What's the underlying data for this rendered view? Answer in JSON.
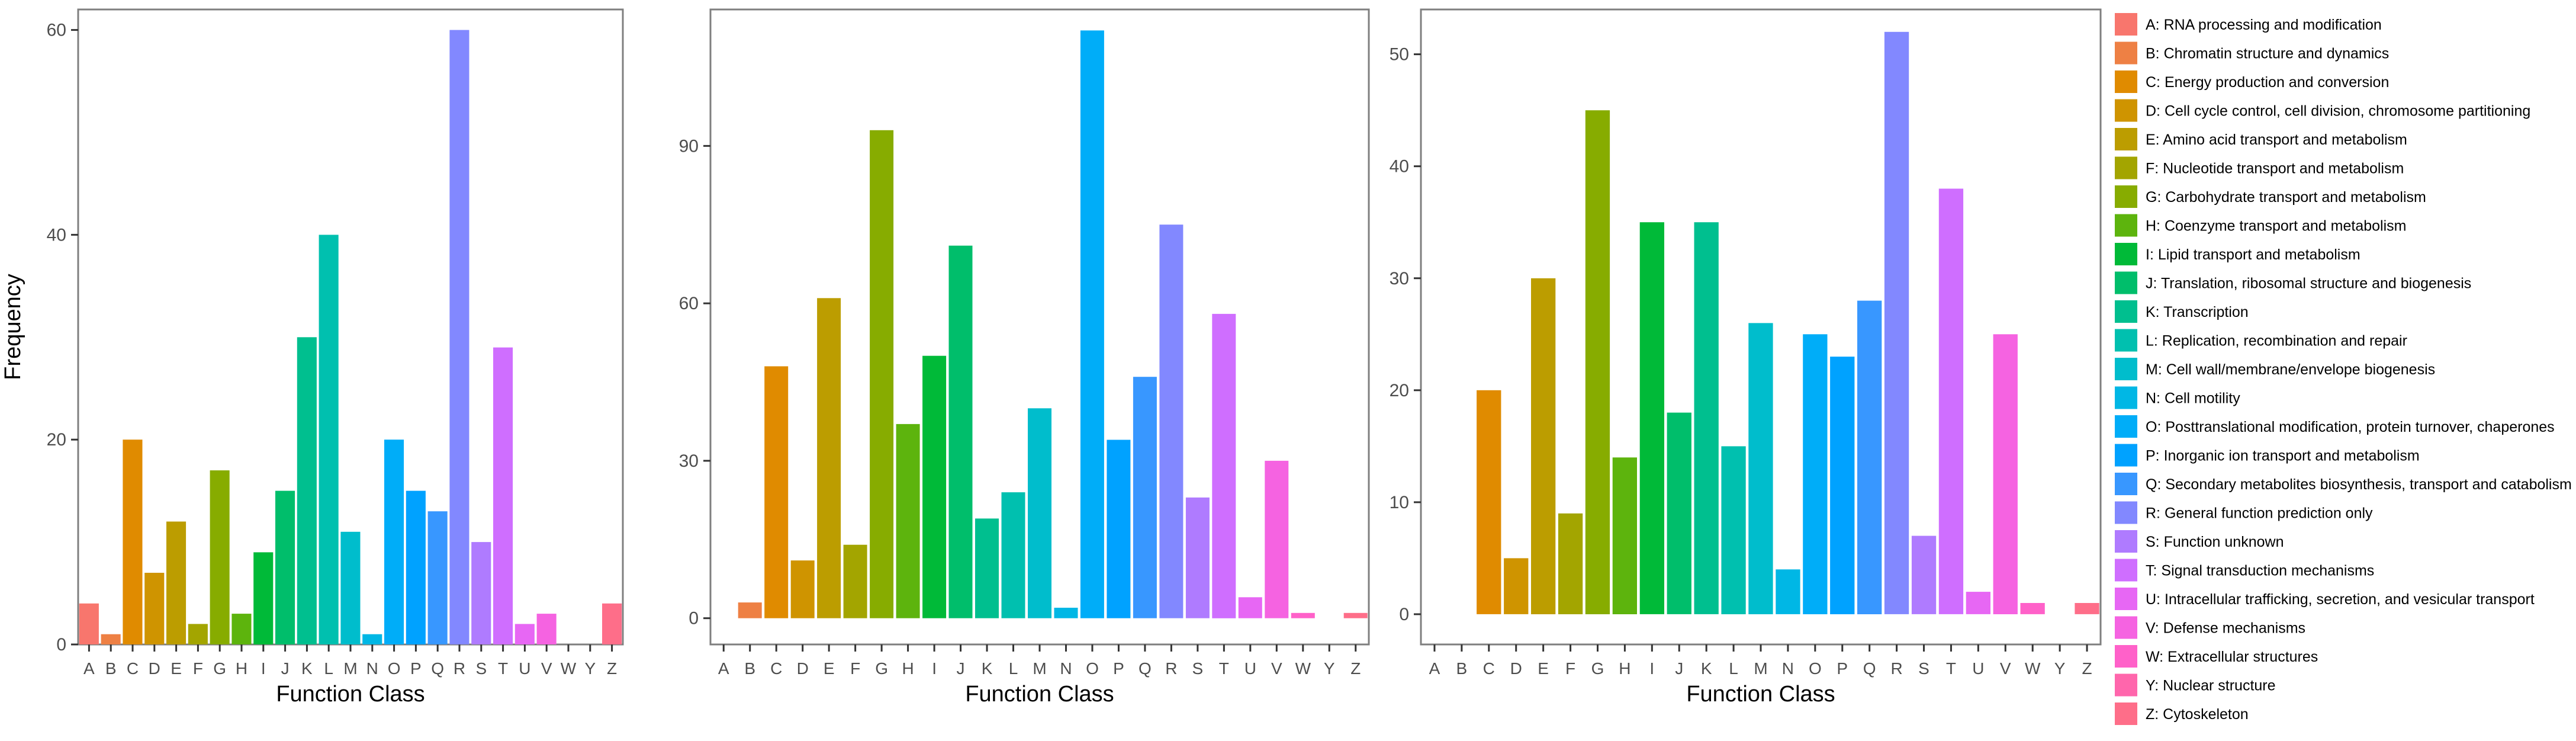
{
  "categories": [
    "A",
    "B",
    "C",
    "D",
    "E",
    "F",
    "G",
    "H",
    "I",
    "J",
    "K",
    "L",
    "M",
    "N",
    "O",
    "P",
    "Q",
    "R",
    "S",
    "T",
    "U",
    "V",
    "W",
    "Y",
    "Z"
  ],
  "colors": [
    "#F8766D",
    "#EE8044",
    "#E08B00",
    "#CF9400",
    "#BC9D00",
    "#A3A500",
    "#87AC00",
    "#5DB40D",
    "#00BA38",
    "#00BE6B",
    "#00BF8F",
    "#00C0AF",
    "#00BDCC",
    "#00B7E5",
    "#00ADF8",
    "#00A2FF",
    "#3897FF",
    "#8288FF",
    "#AF7BFF",
    "#CF6EFF",
    "#E767F4",
    "#F563E1",
    "#FF61C9",
    "#FF66AC",
    "#FE6E89"
  ],
  "chart_data": [
    {
      "type": "bar",
      "title": "",
      "xlabel": "Function Class",
      "ylabel": "Frequency",
      "ylim": [
        0,
        62
      ],
      "yticks": [
        0,
        20,
        40,
        60
      ],
      "categories": [
        "A",
        "B",
        "C",
        "D",
        "E",
        "F",
        "G",
        "H",
        "I",
        "J",
        "K",
        "L",
        "M",
        "N",
        "O",
        "P",
        "Q",
        "R",
        "S",
        "T",
        "U",
        "V",
        "W",
        "Y",
        "Z"
      ],
      "values": [
        4,
        1,
        20,
        7,
        12,
        2,
        17,
        3,
        9,
        15,
        30,
        40,
        11,
        1,
        20,
        15,
        13,
        60,
        10,
        29,
        2,
        3,
        0,
        0,
        4
      ]
    },
    {
      "type": "bar",
      "title": "",
      "xlabel": "Function Class",
      "ylabel": "",
      "ylim": [
        -5,
        116
      ],
      "yticks": [
        0,
        30,
        60,
        90
      ],
      "categories": [
        "A",
        "B",
        "C",
        "D",
        "E",
        "F",
        "G",
        "H",
        "I",
        "J",
        "K",
        "L",
        "M",
        "N",
        "O",
        "P",
        "Q",
        "R",
        "S",
        "T",
        "U",
        "V",
        "W",
        "Y",
        "Z"
      ],
      "values": [
        0,
        3,
        48,
        11,
        61,
        14,
        93,
        37,
        50,
        71,
        19,
        24,
        40,
        2,
        112,
        34,
        46,
        75,
        23,
        58,
        4,
        30,
        1,
        0,
        1
      ]
    },
    {
      "type": "bar",
      "title": "",
      "xlabel": "Function Class",
      "ylabel": "",
      "ylim": [
        -2.7,
        54
      ],
      "yticks": [
        0,
        10,
        20,
        30,
        40,
        50
      ],
      "categories": [
        "A",
        "B",
        "C",
        "D",
        "E",
        "F",
        "G",
        "H",
        "I",
        "J",
        "K",
        "L",
        "M",
        "N",
        "O",
        "P",
        "Q",
        "R",
        "S",
        "T",
        "U",
        "V",
        "W",
        "Y",
        "Z"
      ],
      "values": [
        0,
        0,
        20,
        5,
        30,
        9,
        45,
        14,
        35,
        18,
        35,
        15,
        26,
        4,
        25,
        23,
        28,
        52,
        7,
        38,
        2,
        25,
        1,
        0,
        1
      ]
    }
  ],
  "legend": [
    "A: RNA processing and modification",
    "B: Chromatin structure and dynamics",
    "C: Energy production and conversion",
    "D: Cell cycle control, cell division, chromosome partitioning",
    "E: Amino acid transport and metabolism",
    "F: Nucleotide transport and metabolism",
    "G: Carbohydrate transport and metabolism",
    "H: Coenzyme transport and metabolism",
    "I: Lipid transport and metabolism",
    "J: Translation, ribosomal structure and biogenesis",
    "K: Transcription",
    "L: Replication, recombination and repair",
    "M: Cell wall/membrane/envelope biogenesis",
    "N: Cell motility",
    "O: Posttranslational modification, protein turnover, chaperones",
    "P: Inorganic ion transport and metabolism",
    "Q: Secondary metabolites biosynthesis, transport and catabolism",
    "R: General function prediction only",
    "S: Function unknown",
    "T: Signal transduction mechanisms",
    "U: Intracellular trafficking, secretion, and vesicular transport",
    "V: Defense mechanisms",
    "W: Extracellular structures",
    "Y: Nuclear structure",
    "Z: Cytoskeleton"
  ]
}
